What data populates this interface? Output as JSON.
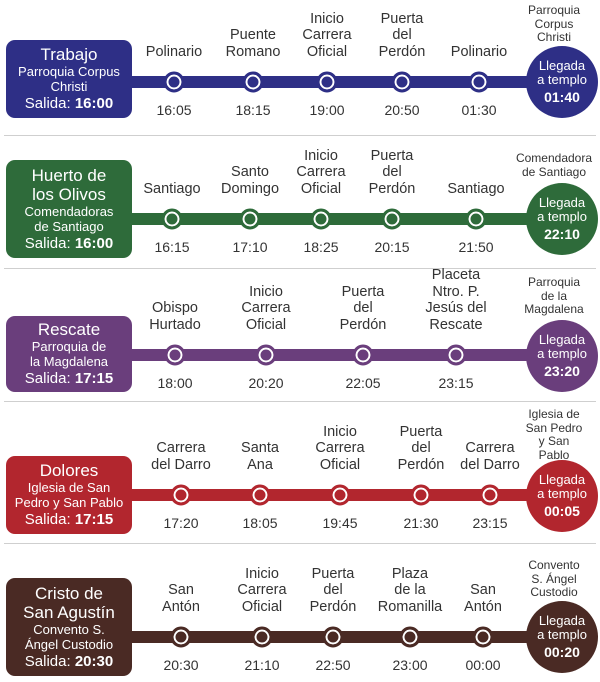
{
  "routes": [
    {
      "color": "#2e2f86",
      "name": "Trabajo",
      "origin": "Parroquia Corpus Christi",
      "departure_label": "Salida:",
      "departure_time": "16:00",
      "destination": "Parroquia Corpus Christi",
      "arrival_label": "Llegada a templo",
      "arrival_time": "01:40",
      "stops": [
        {
          "label": "Polinario",
          "time": "16:05"
        },
        {
          "label": "Puente Romano",
          "time": "18:15"
        },
        {
          "label": "Inicio Carrera Oficial",
          "time": "19:00"
        },
        {
          "label": "Puerta del Perdón",
          "time": "20:50"
        },
        {
          "label": "Polinario",
          "time": "01:30"
        }
      ]
    },
    {
      "color": "#2e6b3a",
      "name": "Huerto de los Olivos",
      "origin": "Comendadoras de Santiago",
      "departure_label": "Salida:",
      "departure_time": "16:00",
      "destination": "Comendadora de Santiago",
      "arrival_label": "Llegada a templo",
      "arrival_time": "22:10",
      "stops": [
        {
          "label": "Santiago",
          "time": "16:15"
        },
        {
          "label": "Santo Domingo",
          "time": "17:10"
        },
        {
          "label": "Inicio Carrera Oficial",
          "time": "18:25"
        },
        {
          "label": "Puerta del Perdón",
          "time": "20:15"
        },
        {
          "label": "Santiago",
          "time": "21:50"
        }
      ]
    },
    {
      "color": "#6a3e7c",
      "name": "Rescate",
      "origin": "Parroquia de la Magdalena",
      "departure_label": "Salida:",
      "departure_time": "17:15",
      "destination": "Parroquia de la Magdalena",
      "arrival_label": "Llegada a templo",
      "arrival_time": "23:20",
      "stops": [
        {
          "label": "Obispo Hurtado",
          "time": "18:00"
        },
        {
          "label": "Inicio Carrera Oficial",
          "time": "20:20"
        },
        {
          "label": "Puerta del Perdón",
          "time": "22:05"
        },
        {
          "label": "Placeta Ntro. P. Jesús del Rescate",
          "time": "23:15"
        }
      ]
    },
    {
      "color": "#b2262e",
      "name": "Dolores",
      "origin": "Iglesia de San Pedro y San Pablo",
      "departure_label": "Salida:",
      "departure_time": "17:15",
      "destination": "Iglesia de San Pedro y San Pablo",
      "arrival_label": "Llegada a templo",
      "arrival_time": "00:05",
      "stops": [
        {
          "label": "Carrera del Darro",
          "time": "17:20"
        },
        {
          "label": "Santa Ana",
          "time": "18:05"
        },
        {
          "label": "Inicio Carrera Oficial",
          "time": "19:45"
        },
        {
          "label": "Puerta del Perdón",
          "time": "21:30"
        },
        {
          "label": "Carrera del Darro",
          "time": "23:15"
        }
      ]
    },
    {
      "color": "#4a2a24",
      "name": "Cristo de San Agustín",
      "origin": "Convento S. Ángel Custodio",
      "departure_label": "Salida:",
      "departure_time": "20:30",
      "destination": "Convento S. Ángel Custodio",
      "arrival_label": "Llegada a templo",
      "arrival_time": "00:20",
      "stops": [
        {
          "label": "San Antón",
          "time": "20:30"
        },
        {
          "label": "Inicio Carrera Oficial",
          "time": "21:10"
        },
        {
          "label": "Puerta del Perdón",
          "time": "22:50"
        },
        {
          "label": "Plaza de la Romanilla",
          "time": "23:00"
        },
        {
          "label": "San Antón",
          "time": "00:00"
        }
      ]
    }
  ]
}
